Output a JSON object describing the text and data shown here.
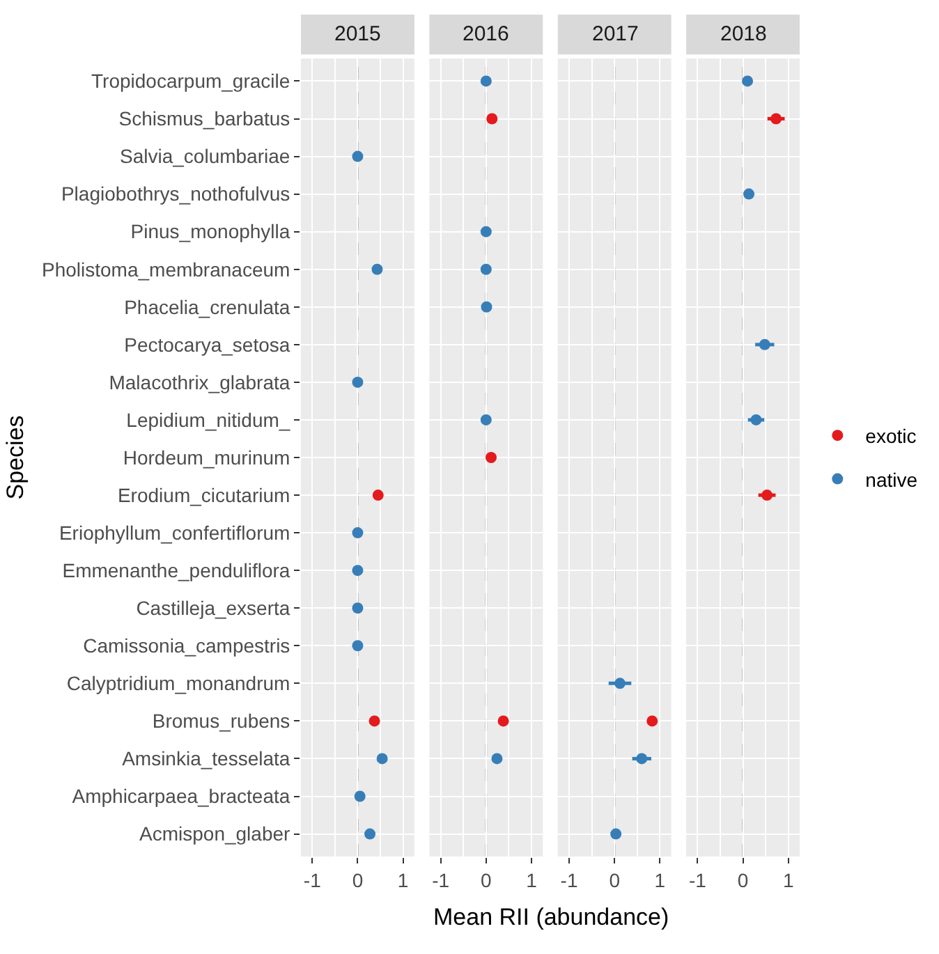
{
  "chart_data": [
    {
      "type": "scatter",
      "orientation": "horizontal",
      "title": "2015",
      "ylabel": "Species",
      "xlabel": "Mean RII (abundance)",
      "marker": "circle",
      "grid": true,
      "legend": "right",
      "categories": [
        "Tropidocarpum_gracile",
        "Schismus_barbatus",
        "Salvia_columbariae",
        "Plagiobothrys_nothofulvus",
        "Pinus_monophylla",
        "Pholistoma_membranaceum",
        "Phacelia_crenulata",
        "Pectocarya_setosa",
        "Malacothrix_glabrata",
        "Lepidium_nitidum_",
        "Hordeum_murinum",
        "Erodium_cicutarium",
        "Eriophyllum_confertiflorum",
        "Emmenanthe_penduliflora",
        "Castilleja_exserta",
        "Camissonia_campestris",
        "Calyptridium_monandrum",
        "Bromus_rubens",
        "Amsinkia_tesselata",
        "Amphicarpaea_bracteata",
        "Acmispon_glaber"
      ],
      "series": [
        {
          "name": "exotic",
          "color": "#e41a1c",
          "values": [
            null,
            null,
            null,
            null,
            null,
            null,
            null,
            null,
            null,
            null,
            null,
            0.45,
            null,
            null,
            null,
            null,
            null,
            0.37,
            null,
            null,
            null
          ]
        },
        {
          "name": "native",
          "color": "#377eb8",
          "values": [
            null,
            null,
            0.0,
            null,
            null,
            0.43,
            null,
            null,
            0.0,
            null,
            null,
            null,
            0.0,
            0.0,
            0.0,
            0.0,
            null,
            null,
            0.54,
            0.05,
            0.27
          ]
        }
      ],
      "xlim": [
        -1.25,
        1.25
      ],
      "xticks": [
        -1,
        0,
        1
      ],
      "ref_lines": [
        {
          "axis": "x",
          "value": 0,
          "color": "#bebebe",
          "line_style": "dashed"
        }
      ]
    },
    {
      "type": "scatter",
      "orientation": "horizontal",
      "title": "2016",
      "marker": "circle",
      "grid": true,
      "tick_labels": "x",
      "categories": [
        "Tropidocarpum_gracile",
        "Schismus_barbatus",
        "Salvia_columbariae",
        "Plagiobothrys_nothofulvus",
        "Pinus_monophylla",
        "Pholistoma_membranaceum",
        "Phacelia_crenulata",
        "Pectocarya_setosa",
        "Malacothrix_glabrata",
        "Lepidium_nitidum_",
        "Hordeum_murinum",
        "Erodium_cicutarium",
        "Eriophyllum_confertiflorum",
        "Emmenanthe_penduliflora",
        "Castilleja_exserta",
        "Camissonia_campestris",
        "Calyptridium_monandrum",
        "Bromus_rubens",
        "Amsinkia_tesselata",
        "Amphicarpaea_bracteata",
        "Acmispon_glaber"
      ],
      "series": [
        {
          "name": "exotic",
          "color": "#e41a1c",
          "values": [
            null,
            0.13,
            null,
            null,
            null,
            null,
            null,
            null,
            null,
            null,
            0.11,
            null,
            null,
            null,
            null,
            null,
            null,
            0.38,
            null,
            null,
            null
          ]
        },
        {
          "name": "native",
          "color": "#377eb8",
          "values": [
            0.0,
            null,
            null,
            null,
            0.0,
            0.0,
            0.01,
            null,
            null,
            0.0,
            null,
            null,
            null,
            null,
            null,
            null,
            null,
            null,
            0.24,
            null,
            null
          ]
        }
      ],
      "xlim": [
        -1.25,
        1.25
      ],
      "xticks": [
        -1,
        0,
        1
      ],
      "ref_lines": [
        {
          "axis": "x",
          "value": 0,
          "color": "#bebebe",
          "line_style": "dashed"
        }
      ]
    },
    {
      "type": "scatter",
      "orientation": "horizontal",
      "title": "2017",
      "marker": "circle",
      "grid": true,
      "tick_labels": "x",
      "categories": [
        "Tropidocarpum_gracile",
        "Schismus_barbatus",
        "Salvia_columbariae",
        "Plagiobothrys_nothofulvus",
        "Pinus_monophylla",
        "Pholistoma_membranaceum",
        "Phacelia_crenulata",
        "Pectocarya_setosa",
        "Malacothrix_glabrata",
        "Lepidium_nitidum_",
        "Hordeum_murinum",
        "Erodium_cicutarium",
        "Eriophyllum_confertiflorum",
        "Emmenanthe_penduliflora",
        "Castilleja_exserta",
        "Camissonia_campestris",
        "Calyptridium_monandrum",
        "Bromus_rubens",
        "Amsinkia_tesselata",
        "Amphicarpaea_bracteata",
        "Acmispon_glaber"
      ],
      "series": [
        {
          "name": "exotic",
          "color": "#e41a1c",
          "values": [
            null,
            null,
            null,
            null,
            null,
            null,
            null,
            null,
            null,
            null,
            null,
            null,
            null,
            null,
            null,
            null,
            null,
            0.83,
            null,
            null,
            null
          ],
          "errors": [
            null,
            null,
            null,
            null,
            null,
            null,
            null,
            null,
            null,
            null,
            null,
            null,
            null,
            null,
            null,
            null,
            null,
            0.1,
            null,
            null,
            null
          ]
        },
        {
          "name": "native",
          "color": "#377eb8",
          "values": [
            null,
            null,
            null,
            null,
            null,
            null,
            null,
            null,
            null,
            null,
            null,
            null,
            null,
            null,
            null,
            null,
            0.12,
            null,
            0.6,
            null,
            0.03
          ],
          "errors": [
            null,
            null,
            null,
            null,
            null,
            null,
            null,
            null,
            null,
            null,
            null,
            null,
            null,
            null,
            null,
            null,
            0.25,
            null,
            0.21,
            null,
            null
          ]
        }
      ],
      "xlim": [
        -1.25,
        1.25
      ],
      "xticks": [
        -1,
        0,
        1
      ],
      "ref_lines": [
        {
          "axis": "x",
          "value": 0,
          "color": "#bebebe",
          "line_style": "dashed"
        }
      ]
    },
    {
      "type": "scatter",
      "orientation": "horizontal",
      "title": "2018",
      "marker": "circle",
      "grid": true,
      "tick_labels": "x",
      "categories": [
        "Tropidocarpum_gracile",
        "Schismus_barbatus",
        "Salvia_columbariae",
        "Plagiobothrys_nothofulvus",
        "Pinus_monophylla",
        "Pholistoma_membranaceum",
        "Phacelia_crenulata",
        "Pectocarya_setosa",
        "Malacothrix_glabrata",
        "Lepidium_nitidum_",
        "Hordeum_murinum",
        "Erodium_cicutarium",
        "Eriophyllum_confertiflorum",
        "Emmenanthe_penduliflora",
        "Castilleja_exserta",
        "Camissonia_campestris",
        "Calyptridium_monandrum",
        "Bromus_rubens",
        "Amsinkia_tesselata",
        "Amphicarpaea_bracteata",
        "Acmispon_glaber"
      ],
      "series": [
        {
          "name": "exotic",
          "color": "#e41a1c",
          "values": [
            null,
            0.73,
            null,
            null,
            null,
            null,
            null,
            null,
            null,
            null,
            null,
            0.53,
            null,
            null,
            null,
            null,
            null,
            null,
            null,
            null,
            null
          ],
          "errors": [
            null,
            0.19,
            null,
            null,
            null,
            null,
            null,
            null,
            null,
            null,
            null,
            0.19,
            null,
            null,
            null,
            null,
            null,
            null,
            null,
            null,
            null
          ]
        },
        {
          "name": "native",
          "color": "#377eb8",
          "values": [
            0.1,
            null,
            null,
            0.13,
            null,
            null,
            null,
            0.48,
            null,
            0.29,
            null,
            null,
            null,
            null,
            null,
            null,
            null,
            null,
            null,
            null,
            null
          ],
          "errors": [
            null,
            null,
            null,
            0.1,
            null,
            null,
            null,
            0.21,
            null,
            0.18,
            null,
            null,
            null,
            null,
            null,
            null,
            null,
            null,
            null,
            null,
            null
          ]
        }
      ],
      "xlim": [
        -1.25,
        1.25
      ],
      "xticks": [
        -1,
        0,
        1
      ],
      "ref_lines": [
        {
          "axis": "x",
          "value": 0,
          "color": "#bebebe",
          "line_style": "dashed"
        }
      ]
    }
  ]
}
